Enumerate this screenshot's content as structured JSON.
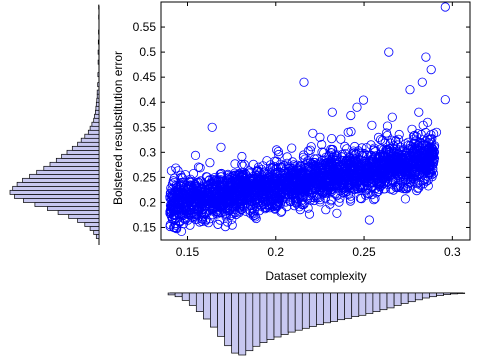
{
  "chart_data": [
    {
      "type": "scatter",
      "xlabel": "Dataset complexity",
      "ylabel": "Bolstered resubstitution error",
      "xlim": [
        0.135,
        0.31
      ],
      "ylim": [
        0.125,
        0.6
      ],
      "x_ticks": [
        "0.15",
        "0.2",
        "0.25",
        "0.3"
      ],
      "y_ticks": [
        "0.15",
        "0.2",
        "0.25",
        "0.3",
        "0.35",
        "0.4",
        "0.45",
        "0.5",
        "0.55"
      ],
      "marker": "circle",
      "marker_color": "#0000ff",
      "grid": false,
      "trend": {
        "x": [
          0.14,
          0.29
        ],
        "y": [
          0.195,
          0.285
        ]
      },
      "outliers": {
        "x": [
          0.296,
          0.264,
          0.285,
          0.288,
          0.216,
          0.283,
          0.276,
          0.246,
          0.296,
          0.281,
          0.232,
          0.286,
          0.266,
          0.291,
          0.164,
          0.169,
          0.225,
          0.275,
          0.241,
          0.253
        ],
        "y": [
          0.59,
          0.5,
          0.49,
          0.465,
          0.44,
          0.44,
          0.425,
          0.39,
          0.405,
          0.38,
          0.38,
          0.36,
          0.37,
          0.34,
          0.35,
          0.31,
          0.33,
          0.32,
          0.34,
          0.165
        ]
      }
    },
    {
      "type": "bar",
      "orientation": "horizontal",
      "axis": "Bolstered resubstitution error",
      "fill": "#c8c8f0",
      "bin_centers": [
        0.132,
        0.14,
        0.148,
        0.156,
        0.164,
        0.172,
        0.18,
        0.188,
        0.196,
        0.204,
        0.212,
        0.22,
        0.228,
        0.236,
        0.244,
        0.252,
        0.26,
        0.268,
        0.276,
        0.284,
        0.292,
        0.3,
        0.308,
        0.316,
        0.324,
        0.332,
        0.34,
        0.348,
        0.356,
        0.364,
        0.372,
        0.38,
        0.388,
        0.396,
        0.404,
        0.412,
        0.42,
        0.435,
        0.455,
        0.48,
        0.5,
        0.52,
        0.54,
        0.57,
        0.59
      ],
      "values": [
        0.03,
        0.06,
        0.1,
        0.16,
        0.24,
        0.34,
        0.46,
        0.58,
        0.72,
        0.85,
        0.95,
        1.0,
        0.97,
        0.92,
        0.86,
        0.78,
        0.7,
        0.62,
        0.55,
        0.48,
        0.42,
        0.36,
        0.3,
        0.24,
        0.2,
        0.16,
        0.12,
        0.1,
        0.08,
        0.06,
        0.05,
        0.04,
        0.035,
        0.03,
        0.025,
        0.02,
        0.02,
        0.015,
        0.012,
        0.01,
        0.01,
        0.008,
        0.006,
        0.005,
        0.004
      ]
    },
    {
      "type": "bar",
      "orientation": "vertical",
      "axis": "Dataset complexity",
      "fill": "#c8c8f0",
      "bin_centers": [
        0.141,
        0.145,
        0.149,
        0.153,
        0.157,
        0.161,
        0.165,
        0.169,
        0.173,
        0.177,
        0.181,
        0.185,
        0.189,
        0.193,
        0.197,
        0.201,
        0.205,
        0.209,
        0.213,
        0.217,
        0.221,
        0.225,
        0.229,
        0.233,
        0.237,
        0.241,
        0.245,
        0.249,
        0.253,
        0.257,
        0.261,
        0.265,
        0.269,
        0.273,
        0.277,
        0.281,
        0.285,
        0.289,
        0.293,
        0.297,
        0.301,
        0.305
      ],
      "values": [
        0.03,
        0.06,
        0.12,
        0.2,
        0.3,
        0.42,
        0.55,
        0.7,
        0.85,
        0.97,
        1.0,
        0.93,
        0.86,
        0.8,
        0.75,
        0.71,
        0.67,
        0.63,
        0.6,
        0.57,
        0.54,
        0.51,
        0.48,
        0.46,
        0.43,
        0.41,
        0.38,
        0.36,
        0.33,
        0.3,
        0.27,
        0.24,
        0.2,
        0.17,
        0.14,
        0.11,
        0.08,
        0.06,
        0.04,
        0.025,
        0.015,
        0.008
      ]
    }
  ]
}
